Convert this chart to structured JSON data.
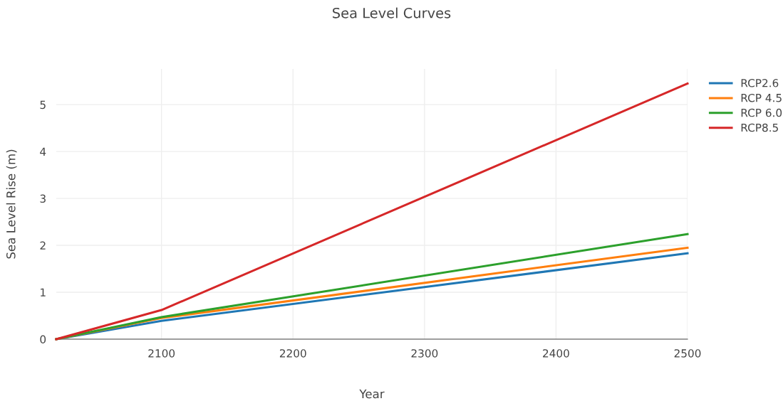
{
  "chart_data": {
    "type": "line",
    "title": "Sea Level Curves",
    "xlabel": "Year",
    "ylabel": "Sea Level Rise (m)",
    "x": [
      2020,
      2100,
      2500
    ],
    "series": [
      {
        "name": "RCP2.6",
        "color": "#1f77b4",
        "values": [
          0,
          0.39,
          1.83
        ]
      },
      {
        "name": "RCP 4.5",
        "color": "#ff7f0e",
        "values": [
          0,
          0.45,
          1.95
        ]
      },
      {
        "name": "RCP 6.0",
        "color": "#2ca02c",
        "values": [
          0,
          0.47,
          2.24
        ]
      },
      {
        "name": "RCP8.5",
        "color": "#d62728",
        "values": [
          0,
          0.62,
          5.45
        ]
      }
    ],
    "xlim": [
      2020,
      2500
    ],
    "xticks": [
      2100,
      2200,
      2300,
      2400,
      2500
    ],
    "ylim": [
      0,
      5.76
    ],
    "yticks": [
      0,
      1,
      2,
      3,
      4,
      5
    ],
    "grid": true,
    "legend": "top right",
    "marker": "none",
    "line_style": "solid"
  }
}
